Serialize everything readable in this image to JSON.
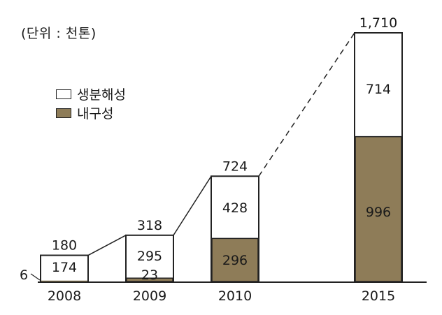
{
  "unit_label": "(단위 : 천톤)",
  "legend": [
    {
      "label": "생분해성",
      "color": "#ffffff"
    },
    {
      "label": "내구성",
      "color": "#8e7c58"
    }
  ],
  "chart_data": {
    "type": "bar",
    "stacked": true,
    "categories": [
      "2008",
      "2009",
      "2010",
      "2015"
    ],
    "series": [
      {
        "name": "내구성",
        "values": [
          6,
          23,
          296,
          996
        ],
        "value_labels": [
          "6",
          "23",
          "296",
          "996"
        ],
        "color": "#8e7c58"
      },
      {
        "name": "생분해성",
        "values": [
          174,
          295,
          428,
          714
        ],
        "value_labels": [
          "174",
          "295",
          "428",
          "714"
        ],
        "color": "#ffffff"
      }
    ],
    "totals": [
      180,
      318,
      724,
      1710
    ],
    "total_labels": [
      "180",
      "318",
      "724",
      "1,710"
    ],
    "ylim": [
      0,
      1710
    ],
    "grid": false,
    "legend_position": "top-left"
  }
}
